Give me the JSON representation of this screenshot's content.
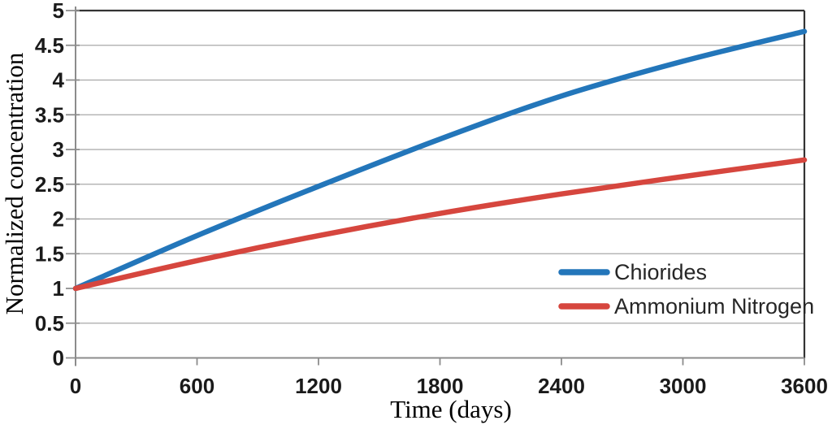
{
  "chart_data": {
    "type": "line",
    "title": "",
    "xlabel": "Time (days)",
    "ylabel": "Normalized concentration",
    "xlim": [
      0,
      3600
    ],
    "ylim": [
      0,
      5
    ],
    "xticks": [
      "0",
      "600",
      "1200",
      "1800",
      "2400",
      "3000",
      "3600"
    ],
    "yticks": [
      "5",
      "4.5",
      "4",
      "3.5",
      "3",
      "2.5",
      "2",
      "1.5",
      "1",
      "0.5",
      "0"
    ],
    "grid": "horizontal-only",
    "legend_position": "inside-bottom-right-no-border",
    "x": [
      0,
      600,
      1200,
      1800,
      2400,
      3000,
      3600
    ],
    "series": [
      {
        "name": "Chiorides",
        "color": "#2376BA",
        "values": [
          1.0,
          1.76,
          2.47,
          3.15,
          3.77,
          4.27,
          4.7
        ]
      },
      {
        "name": "Ammonium Nitrogen",
        "color": "#D6463E",
        "values": [
          1.0,
          1.4,
          1.76,
          2.08,
          2.36,
          2.61,
          2.85
        ]
      }
    ],
    "style_colors": {
      "gridline": "#A8A8A8",
      "tick": "#8C8C8C",
      "axis_left_bottom": "#8C8C8C",
      "axis_top_right": "#333333",
      "tick_label": "#1a1a1a",
      "legend_text": "#262626"
    }
  }
}
